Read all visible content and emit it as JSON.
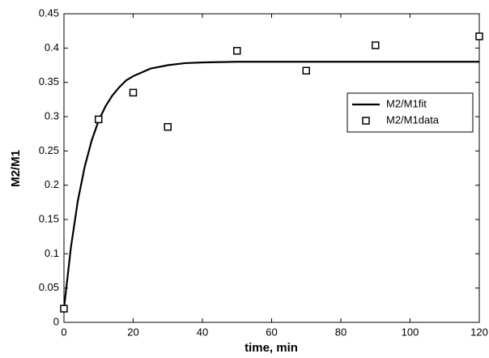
{
  "chart_data": {
    "type": "line",
    "xlabel": "time, min",
    "ylabel": "M2/M1",
    "xlim": [
      0,
      120
    ],
    "ylim": [
      0,
      0.45
    ],
    "xticks": [
      0,
      20,
      40,
      60,
      80,
      100,
      120
    ],
    "yticks": [
      0,
      0.05,
      0.1,
      0.15,
      0.2,
      0.25,
      0.3,
      0.35,
      0.4,
      0.45
    ],
    "grid": false,
    "legend": "upper right",
    "series": [
      {
        "name": "M2/M1fit",
        "type": "line",
        "color": "#000000",
        "x": [
          0,
          2,
          4,
          6,
          8,
          10,
          12,
          14,
          16,
          18,
          20,
          25,
          30,
          35,
          40,
          50,
          60,
          80,
          100,
          120
        ],
        "values": [
          0.02,
          0.109,
          0.177,
          0.227,
          0.265,
          0.294,
          0.315,
          0.331,
          0.343,
          0.353,
          0.359,
          0.37,
          0.375,
          0.378,
          0.379,
          0.38,
          0.38,
          0.38,
          0.38,
          0.38
        ]
      },
      {
        "name": "M2/M1data",
        "type": "scatter",
        "marker": "square",
        "color": "#000000",
        "x": [
          0,
          10,
          20,
          30,
          50,
          70,
          90,
          120
        ],
        "values": [
          0.02,
          0.296,
          0.335,
          0.285,
          0.396,
          0.367,
          0.404,
          0.417
        ]
      }
    ]
  }
}
